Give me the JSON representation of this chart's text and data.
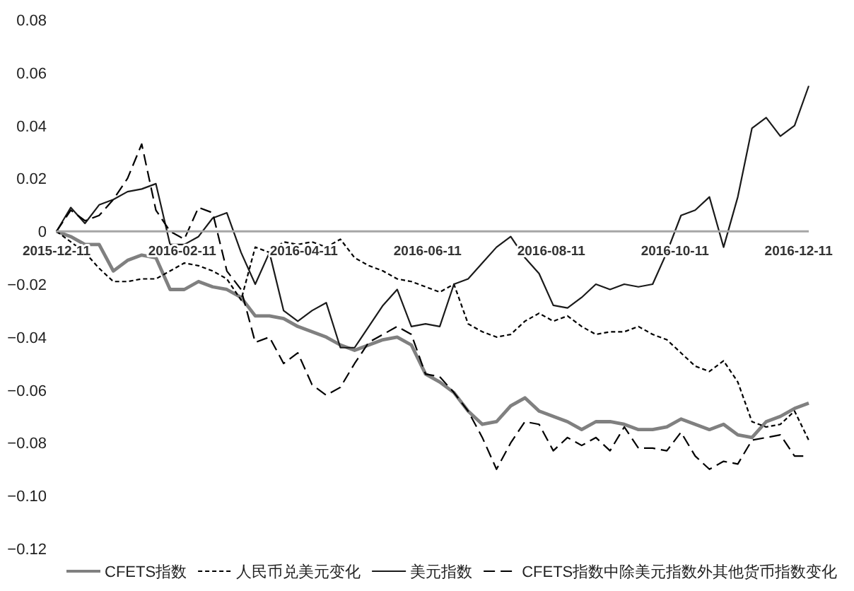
{
  "chart_data": {
    "type": "line",
    "legend": "bottom",
    "marker": "none",
    "xlim": [
      "2015-12-11",
      "2016-12-16"
    ],
    "ylim": [
      -0.12,
      0.08
    ],
    "xticks": [
      {
        "value": "2015-12-11",
        "label": "2015-12-11"
      },
      {
        "value": "2016-02-11",
        "label": "2016-02-11"
      },
      {
        "value": "2016-04-11",
        "label": "2016-04-11"
      },
      {
        "value": "2016-06-11",
        "label": "2016-06-11"
      },
      {
        "value": "2016-08-11",
        "label": "2016-08-11"
      },
      {
        "value": "2016-10-11",
        "label": "2016-10-11"
      },
      {
        "value": "2016-12-11",
        "label": "2016-12-11"
      }
    ],
    "yticks": [
      {
        "value": 0.08,
        "label": "0.08"
      },
      {
        "value": 0.06,
        "label": "0.06"
      },
      {
        "value": 0.04,
        "label": "0.04"
      },
      {
        "value": 0.02,
        "label": "0.02"
      },
      {
        "value": 0,
        "label": "0"
      },
      {
        "value": -0.02,
        "label": "−0.02"
      },
      {
        "value": -0.04,
        "label": "−0.04"
      },
      {
        "value": -0.06,
        "label": "−0.06"
      },
      {
        "value": -0.08,
        "label": "−0.08"
      },
      {
        "value": -0.1,
        "label": "−0.10"
      },
      {
        "value": -0.12,
        "label": "−0.12"
      }
    ],
    "x": [
      "2015-12-11",
      "2015-12-18",
      "2015-12-25",
      "2016-01-01",
      "2016-01-08",
      "2016-01-15",
      "2016-01-22",
      "2016-01-29",
      "2016-02-05",
      "2016-02-12",
      "2016-02-19",
      "2016-02-26",
      "2016-03-04",
      "2016-03-11",
      "2016-03-18",
      "2016-03-25",
      "2016-04-01",
      "2016-04-08",
      "2016-04-15",
      "2016-04-22",
      "2016-04-29",
      "2016-05-06",
      "2016-05-13",
      "2016-05-20",
      "2016-05-27",
      "2016-06-03",
      "2016-06-10",
      "2016-06-17",
      "2016-06-24",
      "2016-07-01",
      "2016-07-08",
      "2016-07-15",
      "2016-07-22",
      "2016-07-29",
      "2016-08-05",
      "2016-08-12",
      "2016-08-19",
      "2016-08-26",
      "2016-09-02",
      "2016-09-09",
      "2016-09-16",
      "2016-09-23",
      "2016-09-30",
      "2016-10-07",
      "2016-10-14",
      "2016-10-21",
      "2016-10-28",
      "2016-11-04",
      "2016-11-11",
      "2016-11-18",
      "2016-11-25",
      "2016-12-02",
      "2016-12-09",
      "2016-12-16"
    ],
    "series": [
      {
        "name": "CFETS指数",
        "color": "#808080",
        "line_style": "solid",
        "values": [
          0,
          -0.002,
          -0.005,
          -0.005,
          -0.015,
          -0.011,
          -0.009,
          -0.01,
          -0.022,
          -0.022,
          -0.019,
          -0.021,
          -0.022,
          -0.025,
          -0.032,
          -0.032,
          -0.033,
          -0.036,
          -0.038,
          -0.04,
          -0.043,
          -0.045,
          -0.043,
          -0.041,
          -0.04,
          -0.043,
          -0.054,
          -0.057,
          -0.061,
          -0.068,
          -0.073,
          -0.072,
          -0.066,
          -0.063,
          -0.068,
          -0.07,
          -0.072,
          -0.075,
          -0.072,
          -0.072,
          -0.073,
          -0.075,
          -0.075,
          -0.074,
          -0.071,
          -0.073,
          -0.075,
          -0.073,
          -0.077,
          -0.078,
          -0.072,
          -0.07,
          -0.067,
          -0.065
        ]
      },
      {
        "name": "人民币兑美元变化",
        "color": "#000000",
        "line_style": "dashed",
        "values": [
          0,
          -0.004,
          -0.008,
          -0.014,
          -0.019,
          -0.019,
          -0.018,
          -0.018,
          -0.015,
          -0.012,
          -0.013,
          -0.015,
          -0.018,
          -0.026,
          -0.006,
          -0.008,
          -0.004,
          -0.005,
          -0.004,
          -0.006,
          -0.003,
          -0.01,
          -0.013,
          -0.015,
          -0.018,
          -0.019,
          -0.021,
          -0.023,
          -0.02,
          -0.035,
          -0.038,
          -0.04,
          -0.039,
          -0.034,
          -0.031,
          -0.034,
          -0.032,
          -0.036,
          -0.039,
          -0.038,
          -0.038,
          -0.036,
          -0.039,
          -0.041,
          -0.046,
          -0.051,
          -0.053,
          -0.049,
          -0.057,
          -0.072,
          -0.074,
          -0.073,
          -0.068,
          -0.079
        ]
      },
      {
        "name": "美元指数",
        "color": "#1a1a1a",
        "line_style": "solid",
        "values": [
          0,
          0.009,
          0.003,
          0.01,
          0.012,
          0.015,
          0.016,
          0.018,
          -0.005,
          -0.005,
          -0.002,
          0.005,
          0.007,
          -0.008,
          -0.02,
          -0.008,
          -0.03,
          -0.034,
          -0.03,
          -0.027,
          -0.044,
          -0.044,
          -0.036,
          -0.028,
          -0.022,
          -0.036,
          -0.035,
          -0.036,
          -0.02,
          -0.018,
          -0.012,
          -0.006,
          -0.002,
          -0.01,
          -0.016,
          -0.028,
          -0.029,
          -0.025,
          -0.02,
          -0.022,
          -0.02,
          -0.021,
          -0.02,
          -0.008,
          0.006,
          0.008,
          0.013,
          -0.006,
          0.013,
          0.039,
          0.043,
          0.036,
          0.04,
          0.055
        ]
      },
      {
        "name": "CFETS指数中除美元指数外其他货币指数变化",
        "color": "#000000",
        "line_style": "dashed",
        "values": [
          0,
          0.008,
          0.004,
          0.006,
          0.012,
          0.02,
          0.033,
          0.008,
          0.0,
          -0.003,
          0.009,
          0.007,
          -0.015,
          -0.022,
          -0.042,
          -0.04,
          -0.05,
          -0.046,
          -0.058,
          -0.062,
          -0.059,
          -0.05,
          -0.042,
          -0.039,
          -0.036,
          -0.039,
          -0.054,
          -0.055,
          -0.061,
          -0.068,
          -0.078,
          -0.09,
          -0.08,
          -0.072,
          -0.073,
          -0.083,
          -0.078,
          -0.081,
          -0.078,
          -0.083,
          -0.074,
          -0.082,
          -0.082,
          -0.083,
          -0.076,
          -0.085,
          -0.09,
          -0.087,
          -0.088,
          -0.079,
          -0.078,
          -0.077,
          -0.085,
          -0.085
        ]
      }
    ]
  }
}
